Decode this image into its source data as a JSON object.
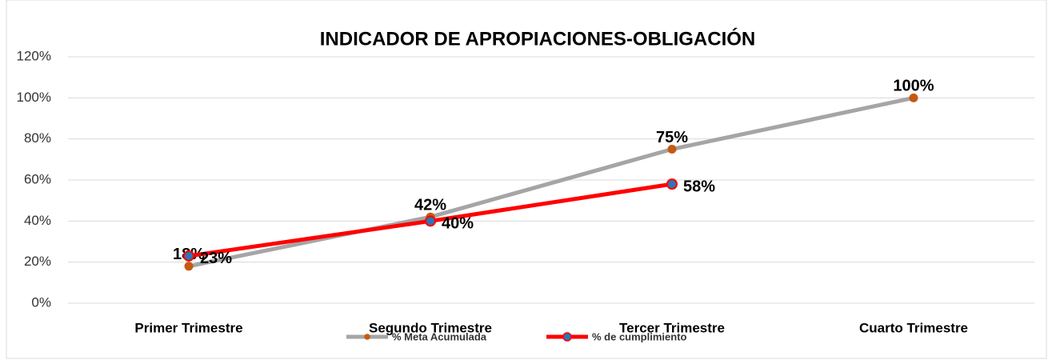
{
  "chart_data": {
    "type": "line",
    "title": "INDICADOR DE APROPIACIONES-OBLIGACIÓN",
    "categories": [
      "Primer Trimestre",
      "Segundo Trimestre",
      "Tercer Trimestre",
      "Cuarto Trimestre"
    ],
    "series": [
      {
        "name": "% Meta Acumulada",
        "color": "#a5a5a5",
        "marker_color": "#c55a11",
        "values": [
          18,
          42,
          75,
          100
        ],
        "value_labels": [
          "18%",
          "42%",
          "75%",
          "100%"
        ]
      },
      {
        "name": "% de cumplimiento",
        "color": "#ff0000",
        "marker_color": "#2e75b6",
        "values": [
          23,
          40,
          58,
          null
        ],
        "value_labels": [
          "23%",
          "40%",
          "58%",
          null
        ]
      }
    ],
    "ylim": [
      0,
      120
    ],
    "yticks": [
      {
        "value": 0,
        "label": "0%"
      },
      {
        "value": 20,
        "label": "20%"
      },
      {
        "value": 40,
        "label": "40%"
      },
      {
        "value": 60,
        "label": "60%"
      },
      {
        "value": 80,
        "label": "80%"
      },
      {
        "value": 100,
        "label": "100%"
      },
      {
        "value": 120,
        "label": "120%"
      }
    ],
    "grid": true,
    "legend": "bottom"
  }
}
